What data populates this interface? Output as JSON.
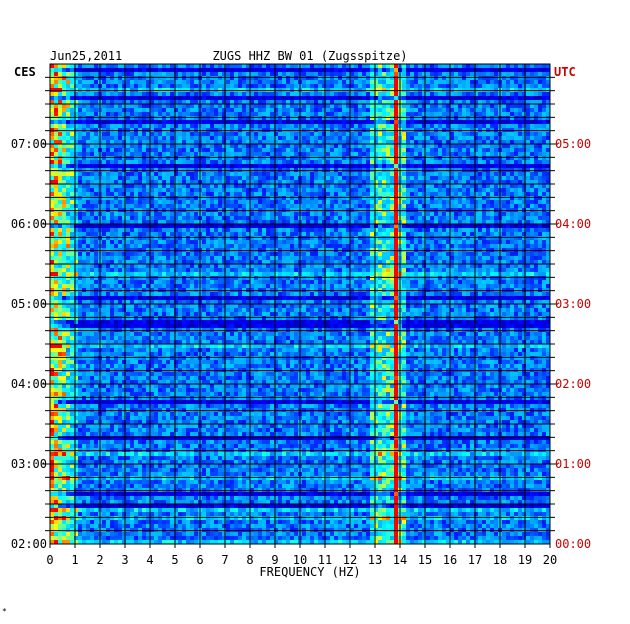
{
  "header": {
    "date": "Jun25,2011",
    "station": "ZUGS HHZ BW 01 (Zugsspitze)",
    "left_tz": "CES",
    "right_tz": "UTC"
  },
  "chart_data": {
    "type": "heatmap",
    "title": "ZUGS HHZ BW 01 (Zugsspitze)",
    "xlabel": "FREQUENCY (HZ)",
    "xlim": [
      0,
      20
    ],
    "x_ticks": [
      "0",
      "1",
      "2",
      "3",
      "4",
      "5",
      "6",
      "7",
      "8",
      "9",
      "10",
      "11",
      "12",
      "13",
      "14",
      "15",
      "16",
      "17",
      "18",
      "19",
      "20"
    ],
    "left_axis_label": "CES",
    "left_ticks": [
      "07:00",
      "06:00",
      "05:00",
      "04:00",
      "03:00",
      "02:00"
    ],
    "right_axis_label": "UTC",
    "right_ticks": [
      "05:00",
      "04:00",
      "03:00",
      "02:00",
      "01:00",
      "00:00"
    ],
    "time_range_utc_hours": [
      0,
      6
    ],
    "grid": true,
    "dominant_peak_hz": 13.9,
    "colors": {
      "background": "#0000a0",
      "low": "#0000ff",
      "mid": "#00ffff",
      "high": "#ffff00",
      "peak": "#ff0000",
      "right_axis_text": "#cc0000"
    }
  },
  "footnote": "*"
}
